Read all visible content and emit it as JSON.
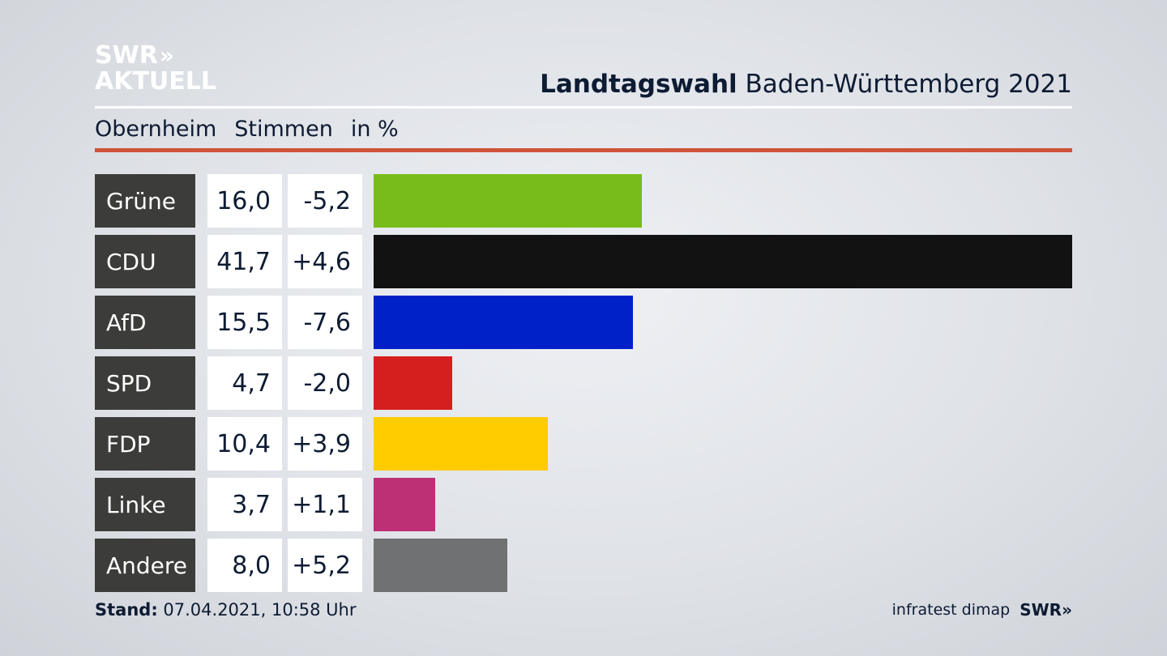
{
  "logo": {
    "line1": "SWR",
    "chevrons": "»",
    "line2": "AKTUELL"
  },
  "header": {
    "title_bold": "Landtagswahl",
    "title_rest": " Baden-Württemberg 2021"
  },
  "subheader": {
    "place": "Obernheim",
    "measure": "Stimmen",
    "unit": "in %"
  },
  "colors": {
    "accent_rule": "#d0523a",
    "label_bg": "#3c3c3b"
  },
  "chart_data": {
    "type": "bar",
    "orientation": "horizontal",
    "title": "Landtagswahl Baden-Württemberg 2021",
    "subtitle": "Obernheim Stimmen in %",
    "categories": [
      "Grüne",
      "CDU",
      "AfD",
      "SPD",
      "FDP",
      "Linke",
      "Andere"
    ],
    "values": [
      16.0,
      41.7,
      15.5,
      4.7,
      10.4,
      3.7,
      8.0
    ],
    "value_labels": [
      "16,0",
      "41,7",
      "15,5",
      "4,7",
      "10,4",
      "3,7",
      "8,0"
    ],
    "changes": [
      -5.2,
      4.6,
      -7.6,
      -2.0,
      3.9,
      1.1,
      5.2
    ],
    "change_labels": [
      "-5,2",
      "+4,6",
      "-7,6",
      "-2,0",
      "+3,9",
      "+1,1",
      "+5,2"
    ],
    "colors": [
      "#78bc1b",
      "#121212",
      "#0021c8",
      "#d51f1f",
      "#ffcc00",
      "#bd3075",
      "#707173"
    ],
    "xlim": [
      0,
      41.7
    ],
    "grid": false,
    "legend": "none"
  },
  "footer": {
    "stand_label": "Stand:",
    "stand_value": " 07.04.2021, 10:58 Uhr",
    "source": "infratest dimap",
    "brand": "SWR»"
  }
}
